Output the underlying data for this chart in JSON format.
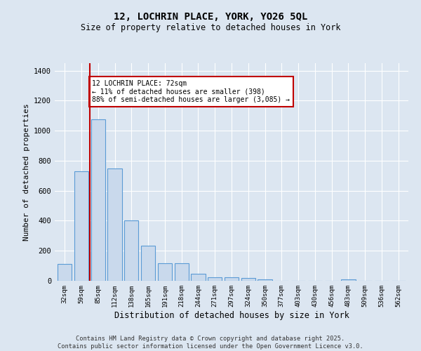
{
  "title1": "12, LOCHRIN PLACE, YORK, YO26 5QL",
  "title2": "Size of property relative to detached houses in York",
  "xlabel": "Distribution of detached houses by size in York",
  "ylabel": "Number of detached properties",
  "bar_labels": [
    "32sqm",
    "59sqm",
    "85sqm",
    "112sqm",
    "138sqm",
    "165sqm",
    "191sqm",
    "218sqm",
    "244sqm",
    "271sqm",
    "297sqm",
    "324sqm",
    "350sqm",
    "377sqm",
    "403sqm",
    "430sqm",
    "456sqm",
    "483sqm",
    "509sqm",
    "536sqm",
    "562sqm"
  ],
  "bar_values": [
    110,
    730,
    1075,
    750,
    400,
    235,
    115,
    115,
    45,
    25,
    25,
    20,
    10,
    0,
    0,
    0,
    0,
    10,
    0,
    0,
    0
  ],
  "bar_color": "#c9d9ec",
  "bar_edge_color": "#5b9bd5",
  "vline_x": 1.5,
  "vline_color": "#c00000",
  "annotation_text": "12 LOCHRIN PLACE: 72sqm\n← 11% of detached houses are smaller (398)\n88% of semi-detached houses are larger (3,085) →",
  "annotation_box_color": "white",
  "annotation_box_edge": "#c00000",
  "ylim": [
    0,
    1450
  ],
  "yticks": [
    0,
    200,
    400,
    600,
    800,
    1000,
    1200,
    1400
  ],
  "bg_color": "#dce6f1",
  "footer1": "Contains HM Land Registry data © Crown copyright and database right 2025.",
  "footer2": "Contains public sector information licensed under the Open Government Licence v3.0."
}
